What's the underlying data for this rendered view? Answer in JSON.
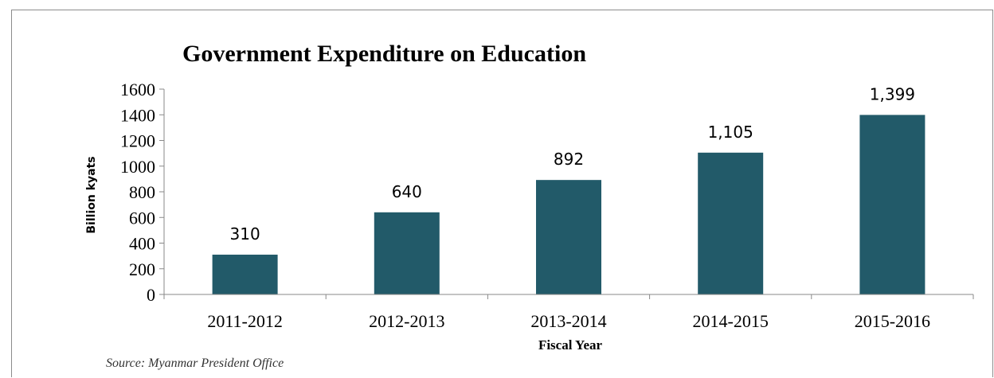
{
  "source": "Source: Myanmar President Office",
  "chart_data": {
    "type": "bar",
    "title": "Government Expenditure on Education",
    "xlabel": "Fiscal Year",
    "ylabel": "Billion kyats",
    "categories": [
      "2011-2012",
      "2012-2013",
      "2013-2014",
      "2014-2015",
      "2015-2016"
    ],
    "values": [
      310,
      640,
      892,
      1105,
      1399
    ],
    "data_labels": [
      "310",
      "640",
      "892",
      "1,105",
      "1,399"
    ],
    "ylim": [
      0,
      1600
    ],
    "yticks": [
      0,
      200,
      400,
      600,
      800,
      1000,
      1200,
      1400,
      1600
    ],
    "bar_color": "#225a69",
    "grid": false,
    "legend": false
  }
}
